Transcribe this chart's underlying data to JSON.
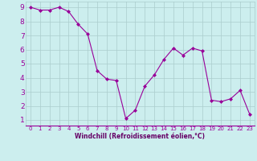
{
  "x": [
    0,
    1,
    2,
    3,
    4,
    5,
    6,
    7,
    8,
    9,
    10,
    11,
    12,
    13,
    14,
    15,
    16,
    17,
    18,
    19,
    20,
    21,
    22,
    23
  ],
  "y": [
    9.0,
    8.8,
    8.8,
    9.0,
    8.7,
    7.8,
    7.1,
    4.5,
    3.9,
    3.8,
    1.1,
    1.7,
    3.4,
    4.2,
    5.3,
    6.1,
    5.6,
    6.1,
    5.9,
    2.4,
    2.3,
    2.5,
    3.1,
    1.4
  ],
  "line_color": "#990099",
  "marker": "D",
  "marker_size": 2,
  "bg_color": "#cceeee",
  "grid_color": "#aacccc",
  "xlabel": "Windchill (Refroidissement éolien,°C)",
  "xlabel_color": "#660066",
  "tick_color": "#990099",
  "xlim": [
    -0.5,
    23.5
  ],
  "ylim": [
    0.6,
    9.4
  ],
  "yticks": [
    1,
    2,
    3,
    4,
    5,
    6,
    7,
    8,
    9
  ],
  "xticks": [
    0,
    1,
    2,
    3,
    4,
    5,
    6,
    7,
    8,
    9,
    10,
    11,
    12,
    13,
    14,
    15,
    16,
    17,
    18,
    19,
    20,
    21,
    22,
    23
  ],
  "xlabel_fontsize": 5.5,
  "ytick_fontsize": 6.5,
  "xtick_fontsize": 5.0
}
